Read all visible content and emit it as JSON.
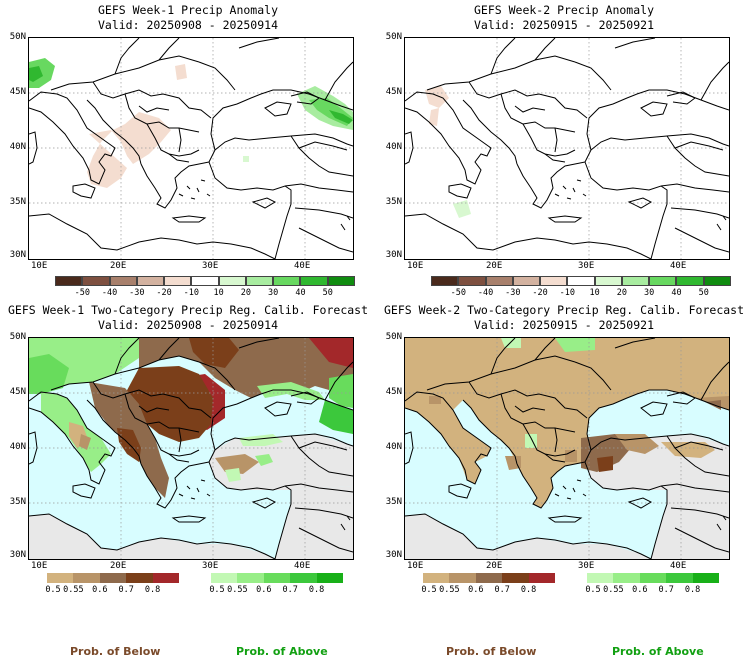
{
  "panels": [
    {
      "title_line1": "GEFS Week-1 Precip Anomaly",
      "title_line2": "Valid: 20250908 - 20250914"
    },
    {
      "title_line1": "GEFS Week-2 Precip Anomaly",
      "title_line2": "Valid: 20250915 - 20250921"
    },
    {
      "title_line1": "GEFS Week-1 Two-Category Precip Reg. Calib. Forecast",
      "title_line2": "Valid: 20250908 - 20250914"
    },
    {
      "title_line1": "GEFS Week-2 Two-Category Precip Reg. Calib. Forecast",
      "title_line2": "Valid: 20250915 - 20250921"
    }
  ],
  "lat_labels": [
    "50N",
    "45N",
    "40N",
    "35N",
    "30N"
  ],
  "lon_labels": [
    "10E",
    "20E",
    "30E",
    "40E"
  ],
  "anomaly_colorbar": {
    "labels": [
      "-50",
      "-40",
      "-30",
      "-20",
      "-10",
      "10",
      "20",
      "30",
      "40",
      "50"
    ],
    "colors": [
      "#4a2a1c",
      "#7e5040",
      "#a8806c",
      "#d3b2a0",
      "#f4ddd0",
      "#ffffff",
      "#d8f8d0",
      "#a8eca0",
      "#68d860",
      "#30b830",
      "#108c10"
    ]
  },
  "below_colorbar": {
    "labels": [
      "0.5",
      "0.55",
      "0.6",
      "0.7",
      "0.8"
    ],
    "colors": [
      "#d2b27e",
      "#b89468",
      "#8e6a4c",
      "#7b3f1a",
      "#a3282a"
    ]
  },
  "above_colorbar": {
    "labels": [
      "0.5",
      "0.55",
      "0.6",
      "0.7",
      "0.8"
    ],
    "colors": [
      "#c2f8b4",
      "#98ee88",
      "#68dc5c",
      "#3cc83c",
      "#18b018"
    ]
  },
  "legend": {
    "below_label": "Prob. of Below",
    "above_label": "Prob. of Above",
    "below_color": "#7a4a2a",
    "above_color": "#12a012"
  },
  "map_colors": {
    "sea_prob": "#d8fdff",
    "land_nodata": "#e8e8e8",
    "brown": "#d2b27e",
    "green": "#98ee88"
  }
}
